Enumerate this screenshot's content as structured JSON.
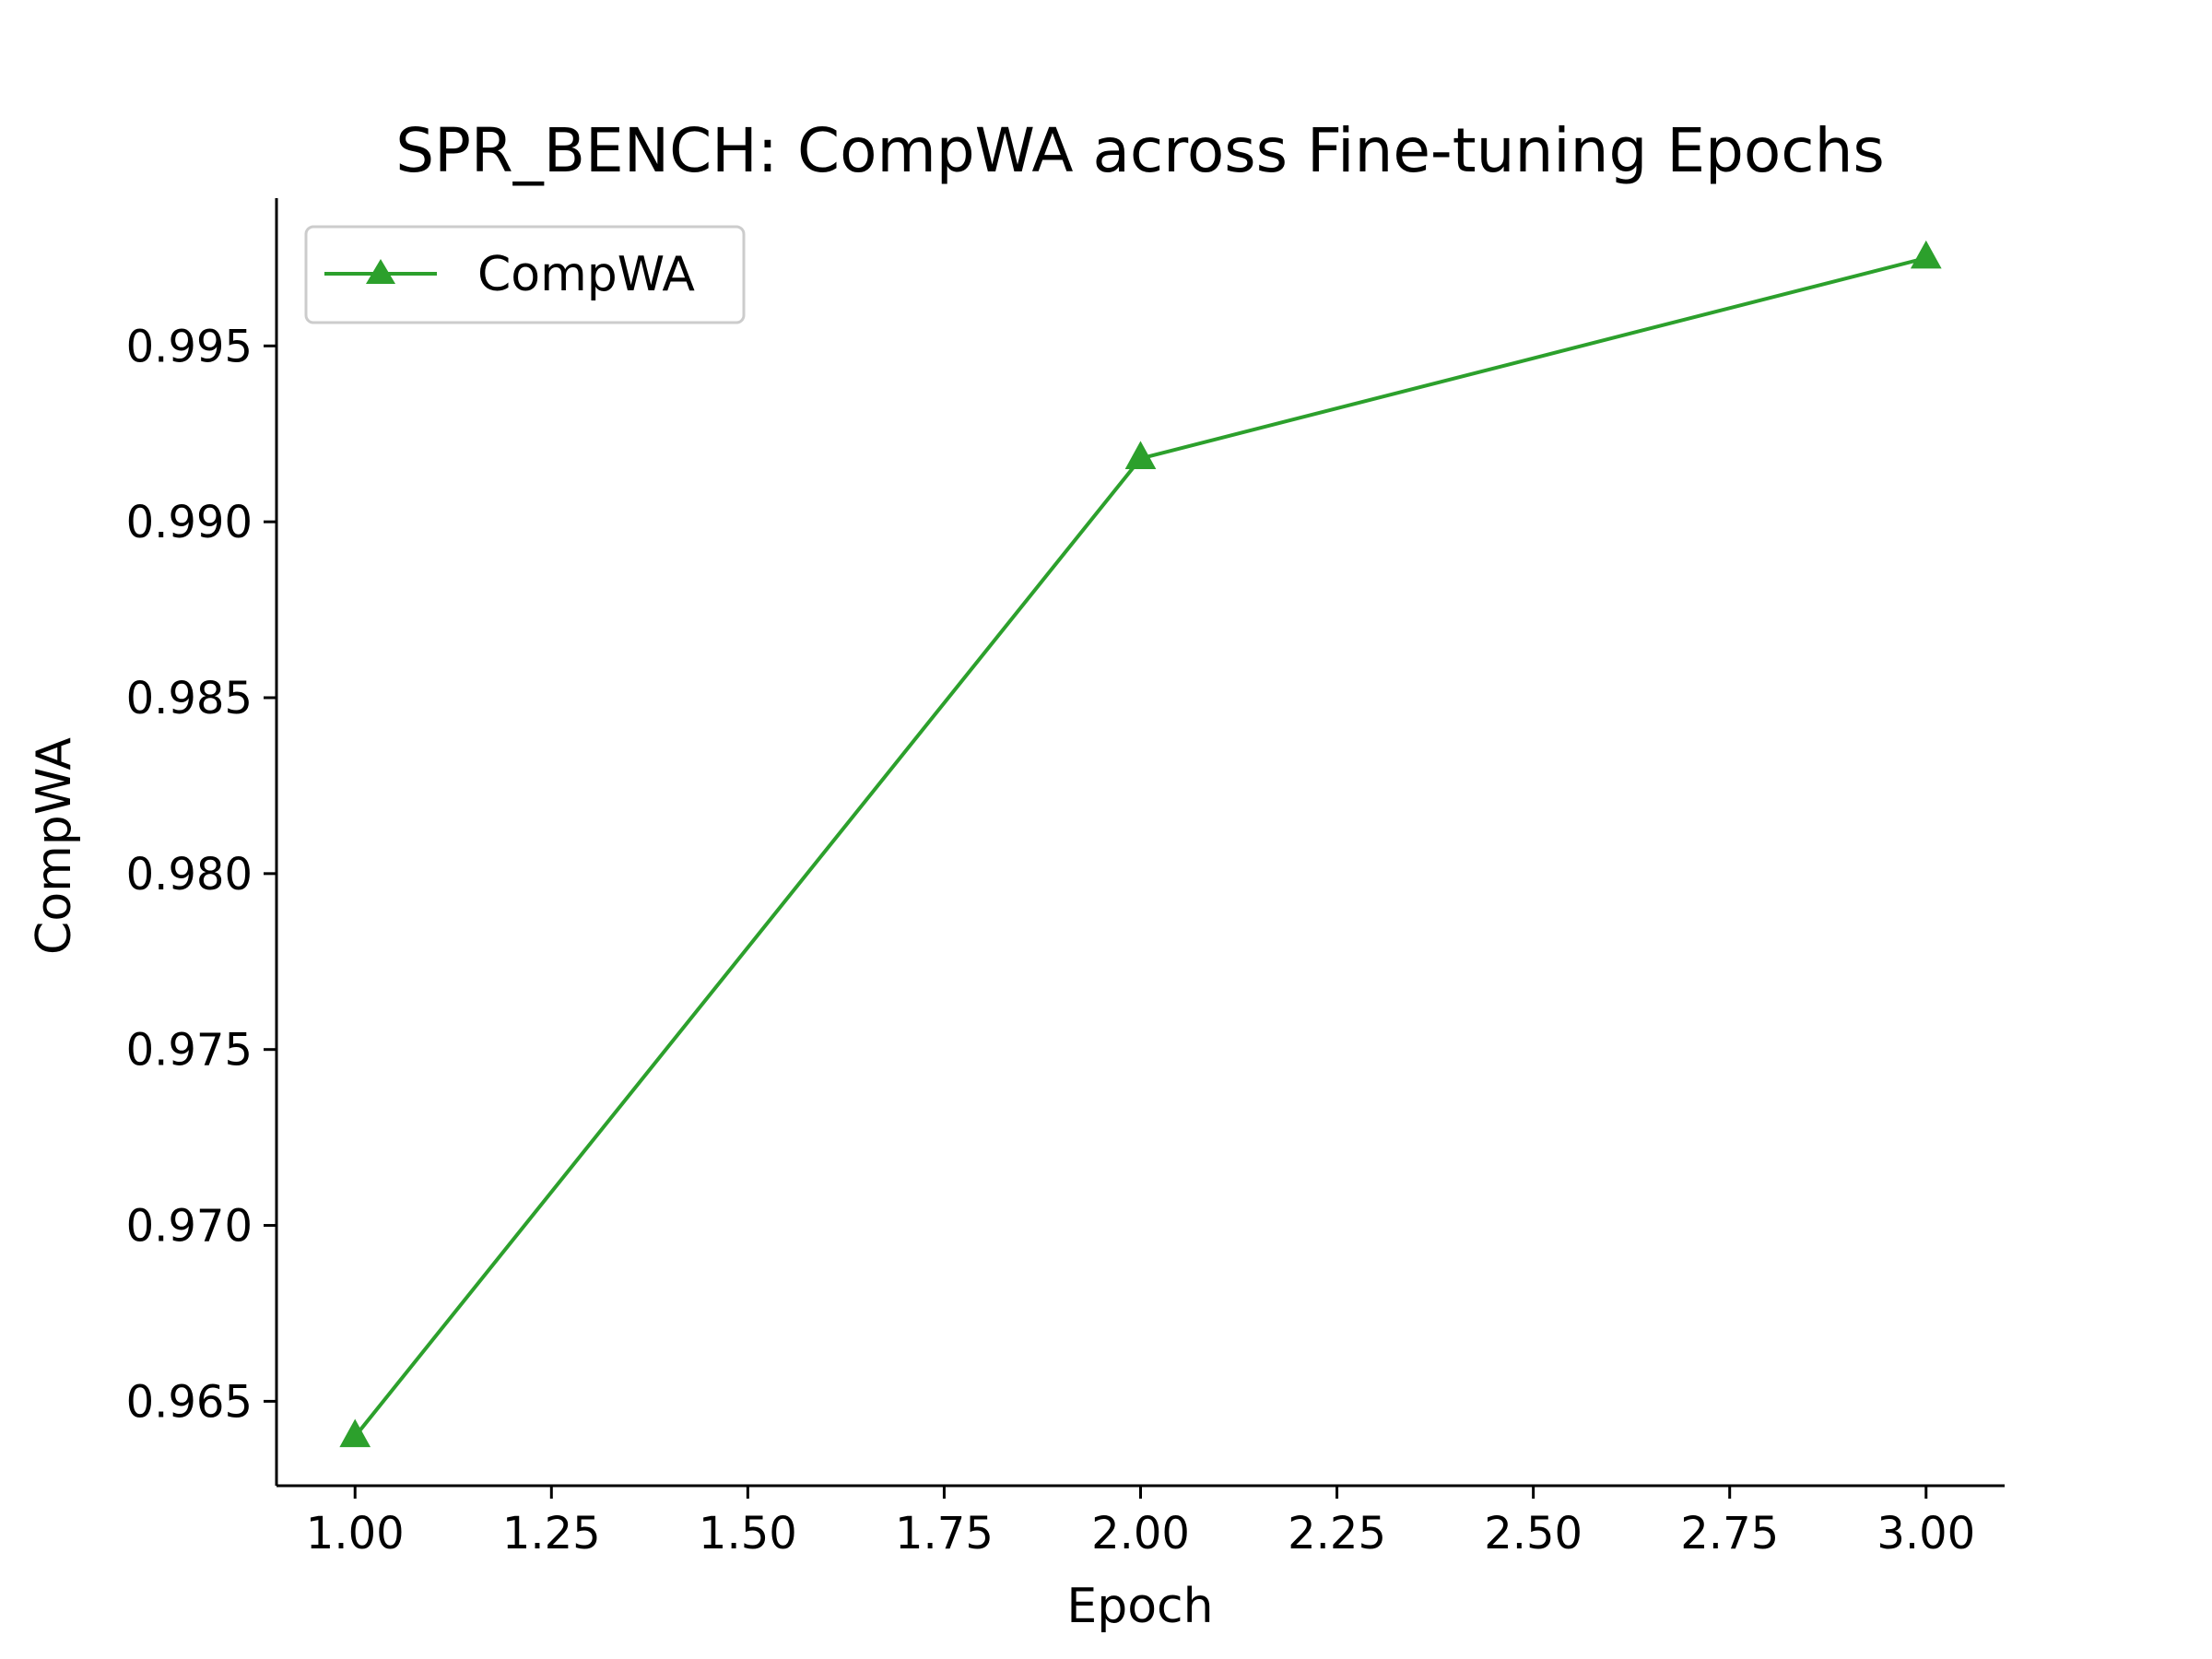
{
  "chart_data": {
    "type": "line",
    "title": "SPR_BENCH: CompWA across Fine-tuning Epochs",
    "xlabel": "Epoch",
    "ylabel": "CompWA",
    "x": [
      1,
      2,
      3
    ],
    "series": [
      {
        "name": "CompWA",
        "color": "#2ca02c",
        "marker": "triangle-up",
        "values": [
          0.964,
          0.9918,
          0.9975
        ]
      }
    ],
    "xlim": [
      0.9,
      3.1
    ],
    "ylim": [
      0.9626,
      0.9992
    ],
    "xticks": [
      1.0,
      1.25,
      1.5,
      1.75,
      2.0,
      2.25,
      2.5,
      2.75,
      3.0
    ],
    "xtick_labels": [
      "1.00",
      "1.25",
      "1.50",
      "1.75",
      "2.00",
      "2.25",
      "2.50",
      "2.75",
      "3.00"
    ],
    "yticks": [
      0.965,
      0.97,
      0.975,
      0.98,
      0.985,
      0.99,
      0.995
    ],
    "ytick_labels": [
      "0.965",
      "0.970",
      "0.975",
      "0.980",
      "0.985",
      "0.990",
      "0.995"
    ],
    "grid": false,
    "legend_position": "upper-left"
  }
}
